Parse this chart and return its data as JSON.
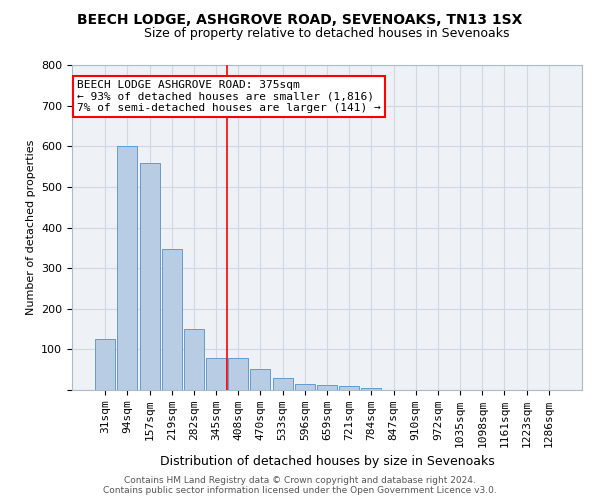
{
  "title": "BEECH LODGE, ASHGROVE ROAD, SEVENOAKS, TN13 1SX",
  "subtitle": "Size of property relative to detached houses in Sevenoaks",
  "xlabel": "Distribution of detached houses by size in Sevenoaks",
  "ylabel": "Number of detached properties",
  "categories": [
    "31sqm",
    "94sqm",
    "157sqm",
    "219sqm",
    "282sqm",
    "345sqm",
    "408sqm",
    "470sqm",
    "533sqm",
    "596sqm",
    "659sqm",
    "721sqm",
    "784sqm",
    "847sqm",
    "910sqm",
    "972sqm",
    "1035sqm",
    "1098sqm",
    "1161sqm",
    "1223sqm",
    "1286sqm"
  ],
  "values": [
    125,
    600,
    558,
    348,
    150,
    78,
    78,
    52,
    30,
    14,
    13,
    11,
    5,
    0,
    0,
    0,
    0,
    0,
    0,
    0,
    0
  ],
  "bar_color": "#b8cce4",
  "bar_edge_color": "#6699cc",
  "ref_line_x": 5.5,
  "ref_line_color": "red",
  "annotation_text": "BEECH LODGE ASHGROVE ROAD: 375sqm\n← 93% of detached houses are smaller (1,816)\n7% of semi-detached houses are larger (141) →",
  "annotation_box_color": "white",
  "annotation_box_edge_color": "red",
  "footer_line1": "Contains HM Land Registry data © Crown copyright and database right 2024.",
  "footer_line2": "Contains public sector information licensed under the Open Government Licence v3.0.",
  "ylim": [
    0,
    800
  ],
  "yticks": [
    0,
    100,
    200,
    300,
    400,
    500,
    600,
    700,
    800
  ],
  "grid_color": "#d0d8e0",
  "bg_color": "#eef2f7",
  "title_fontsize": 10,
  "subtitle_fontsize": 9,
  "ylabel_fontsize": 8,
  "xlabel_fontsize": 9,
  "tick_fontsize": 8,
  "footer_fontsize": 6.5,
  "annotation_fontsize": 8
}
